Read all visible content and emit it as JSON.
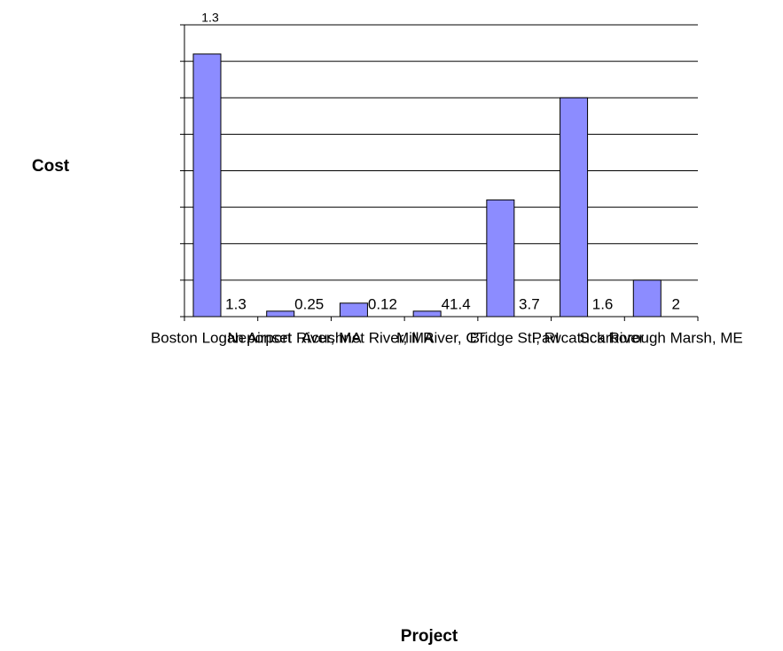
{
  "chart_data": {
    "type": "bar",
    "y_axis_label": "Cost",
    "x_axis_label": "Project",
    "y_top_label": "1.3",
    "categories": [
      "Boston Logan Airport",
      "Neponset River, MA",
      "Acushnet River, MA",
      "Mill River, CT",
      "Bridge St., RI",
      "Pawcatuck River",
      "Scarborough Marsh, ME"
    ],
    "values": [
      7.2,
      0.15,
      0.37,
      0.15,
      3.2,
      6,
      1
    ],
    "labels": [
      "1.3",
      "0.25",
      "0.12",
      "41.4",
      "3.7",
      "1.6",
      "2"
    ],
    "color": "#8c8cff",
    "ylim": [
      0,
      8
    ],
    "yticks": [
      0,
      1,
      2,
      3,
      4,
      5,
      6,
      7,
      8
    ],
    "grid": true
  }
}
